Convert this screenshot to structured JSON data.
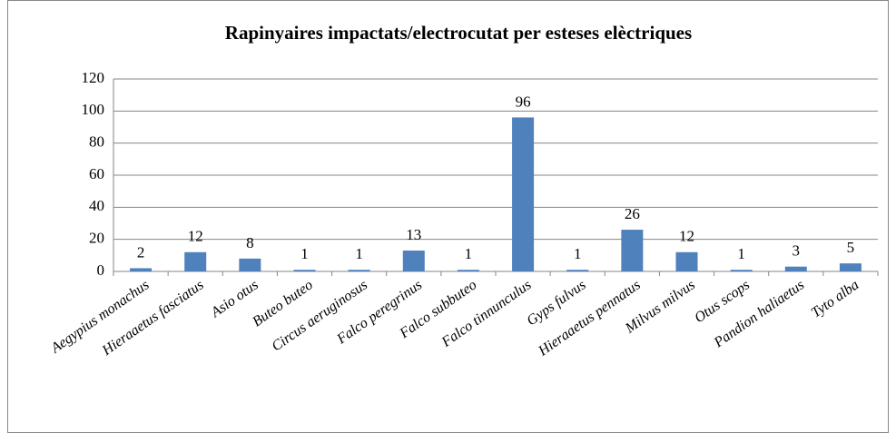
{
  "chart_data": {
    "type": "bar",
    "title": "Rapinyaires impactats/electrocutat per esteses elèctriques",
    "categories": [
      "Aegypius monachus",
      "Hieraaetus fasciatus",
      "Asio otus",
      "Buteo buteo",
      "Circus aeruginosus",
      "Falco peregrinus",
      "Falco subbuteo",
      "Falco tinnunculus",
      "Gyps fulvus",
      "Hieraaetus pennatus",
      "Milvus milvus",
      "Otus scops",
      "Pandion haliaetus",
      "Tyto alba"
    ],
    "values": [
      2,
      12,
      8,
      1,
      1,
      13,
      1,
      96,
      1,
      26,
      12,
      1,
      3,
      5
    ],
    "color": "#4f81bd",
    "ylim": [
      0,
      120
    ],
    "yticks": [
      0,
      20,
      40,
      60,
      80,
      100,
      120
    ],
    "grid": true
  }
}
